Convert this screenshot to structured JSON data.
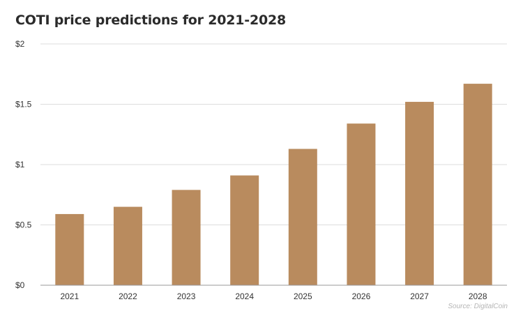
{
  "chart_data": {
    "type": "bar",
    "title": "COTI price predictions for 2021-2028",
    "categories": [
      "2021",
      "2022",
      "2023",
      "2024",
      "2025",
      "2026",
      "2027",
      "2028"
    ],
    "values": [
      0.59,
      0.65,
      0.79,
      0.91,
      1.13,
      1.34,
      1.52,
      1.67
    ],
    "ylim": [
      0,
      2
    ],
    "yticks": [
      0,
      0.5,
      1,
      1.5,
      2
    ],
    "ytick_labels": [
      "$0",
      "$0.5",
      "$1",
      "$1.5",
      "$2"
    ],
    "xlabel": "",
    "ylabel": "",
    "grid": true,
    "bar_color": "#b98b5e",
    "source": "Source: DigitalCoin"
  }
}
